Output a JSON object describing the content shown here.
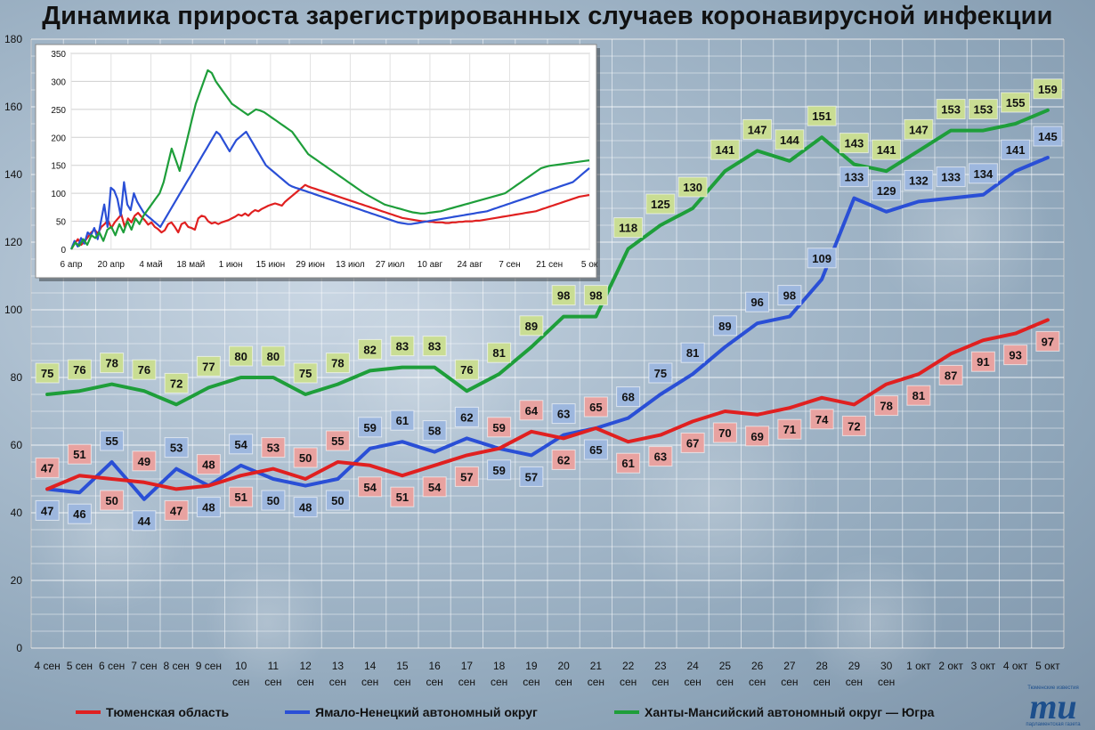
{
  "title": "Динамика прироста зарегистрированных случаев коронавирусной инфекции",
  "colors": {
    "tyumen": "#e02020",
    "yanao": "#2a4fd6",
    "khmao": "#1e9e3a",
    "tyumen_label_bg": "#e8a2a0",
    "yanao_label_bg": "#9db7de",
    "khmao_label_bg": "#c9dd93"
  },
  "logo": {
    "mark": "mu",
    "line1": "Тюменские известия",
    "line2": "парламентская газета"
  },
  "chart_data": [
    {
      "type": "line",
      "title": "Динамика прироста зарегистрированных случаев коронавирусной инфекции",
      "categories": [
        "4 сен",
        "5 сен",
        "6 сен",
        "7 сен",
        "8 сен",
        "9 сен",
        "10 сен",
        "11 сен",
        "12 сен",
        "13 сен",
        "14 сен",
        "15 сен",
        "16 сен",
        "17 сен",
        "18 сен",
        "19 сен",
        "20 сен",
        "21 сен",
        "22 сен",
        "23 сен",
        "24 сен",
        "25 сен",
        "26 сен",
        "27 сен",
        "28 сен",
        "29 сен",
        "30 сен",
        "1 окт",
        "2 окт",
        "3 окт",
        "4 окт",
        "5 окт"
      ],
      "ylim": [
        0,
        180
      ],
      "yticks": [
        0,
        20,
        40,
        60,
        80,
        100,
        120,
        140,
        160,
        180
      ],
      "grid": true,
      "legend": "bottom",
      "series": [
        {
          "name": "Тюменская область",
          "color": "#e02020",
          "values": [
            47,
            51,
            50,
            49,
            47,
            48,
            51,
            53,
            50,
            55,
            54,
            51,
            54,
            57,
            59,
            64,
            62,
            65,
            61,
            63,
            67,
            70,
            69,
            71,
            74,
            72,
            78,
            81,
            87,
            91,
            93,
            97
          ]
        },
        {
          "name": "Ямало-Ненецкий автономный округ",
          "color": "#2a4fd6",
          "values": [
            47,
            46,
            55,
            44,
            53,
            48,
            54,
            50,
            48,
            50,
            59,
            61,
            58,
            62,
            59,
            57,
            63,
            65,
            68,
            75,
            81,
            89,
            96,
            98,
            109,
            133,
            129,
            132,
            133,
            134,
            141,
            145
          ]
        },
        {
          "name": "Ханты-Мансийский автономный округ — Югра",
          "color": "#1e9e3a",
          "values": [
            75,
            76,
            78,
            76,
            72,
            77,
            80,
            80,
            75,
            78,
            82,
            83,
            83,
            76,
            81,
            89,
            98,
            98,
            118,
            125,
            130,
            141,
            147,
            144,
            151,
            143,
            141,
            147,
            153,
            153,
            155,
            159
          ]
        }
      ]
    },
    {
      "type": "line",
      "xticks": [
        "6 апр",
        "20 апр",
        "4 май",
        "18 май",
        "1 июн",
        "15 июн",
        "29 июн",
        "13 июл",
        "27 июл",
        "10 авг",
        "24 авг",
        "7 сен",
        "21 сен",
        "5 ок"
      ],
      "ylim": [
        0,
        350
      ],
      "yticks": [
        0,
        50,
        100,
        150,
        200,
        250,
        300,
        350
      ],
      "grid": true,
      "series": [
        {
          "color": "#e02020",
          "values": [
            0,
            10,
            18,
            8,
            14,
            22,
            30,
            35,
            28,
            40,
            45,
            52,
            38,
            48,
            55,
            62,
            40,
            55,
            48,
            60,
            65,
            58,
            52,
            44,
            48,
            40,
            36,
            30,
            34,
            45,
            48,
            40,
            30,
            45,
            48,
            40,
            38,
            35,
            55,
            60,
            58,
            50,
            46,
            48,
            45,
            48,
            50,
            52,
            55,
            58,
            62,
            60,
            64,
            60,
            66,
            70,
            68,
            72,
            75,
            78,
            80,
            82,
            80,
            78,
            85,
            90,
            95,
            100,
            105,
            110,
            115,
            112,
            110,
            108,
            106,
            104,
            102,
            100,
            98,
            96,
            94,
            92,
            90,
            88,
            86,
            84,
            82,
            80,
            78,
            76,
            74,
            72,
            70,
            68,
            66,
            64,
            62,
            60,
            58,
            56,
            55,
            54,
            53,
            52,
            51,
            50,
            50,
            49,
            49,
            48,
            48,
            48,
            47,
            47,
            48,
            48,
            49,
            49,
            50,
            50,
            50,
            51,
            51,
            52,
            53,
            54,
            55,
            56,
            57,
            58,
            59,
            60,
            61,
            62,
            63,
            64,
            65,
            66,
            67,
            68,
            70,
            72,
            74,
            76,
            78,
            80,
            82,
            84,
            86,
            88,
            90,
            92,
            94,
            95,
            96,
            97
          ]
        },
        {
          "color": "#2a4fd6",
          "values": [
            0,
            15,
            5,
            20,
            10,
            30,
            25,
            38,
            18,
            50,
            80,
            40,
            110,
            105,
            90,
            60,
            120,
            80,
            70,
            100,
            85,
            75,
            65,
            60,
            55,
            50,
            45,
            40,
            50,
            60,
            70,
            80,
            90,
            100,
            110,
            120,
            130,
            140,
            150,
            160,
            170,
            180,
            190,
            200,
            210,
            205,
            195,
            185,
            175,
            185,
            195,
            200,
            205,
            210,
            200,
            190,
            180,
            170,
            160,
            150,
            145,
            140,
            135,
            130,
            125,
            120,
            115,
            112,
            110,
            108,
            106,
            104,
            102,
            100,
            98,
            96,
            94,
            92,
            90,
            88,
            86,
            84,
            82,
            80,
            78,
            76,
            74,
            72,
            70,
            68,
            66,
            64,
            62,
            60,
            58,
            56,
            54,
            52,
            50,
            48,
            47,
            46,
            45,
            45,
            46,
            47,
            48,
            49,
            50,
            51,
            52,
            53,
            54,
            55,
            56,
            57,
            58,
            59,
            60,
            61,
            62,
            63,
            64,
            65,
            66,
            67,
            68,
            70,
            72,
            74,
            76,
            78,
            80,
            82,
            84,
            86,
            88,
            90,
            92,
            94,
            96,
            98,
            100,
            102,
            104,
            106,
            108,
            110,
            112,
            114,
            116,
            118,
            120,
            125,
            130,
            135,
            140,
            145
          ]
        },
        {
          "color": "#1e9e3a",
          "values": [
            0,
            12,
            6,
            18,
            8,
            25,
            20,
            30,
            15,
            35,
            40,
            25,
            45,
            30,
            50,
            35,
            55,
            45,
            60,
            70,
            80,
            90,
            100,
            120,
            150,
            180,
            160,
            140,
            170,
            200,
            230,
            260,
            280,
            300,
            320,
            315,
            300,
            290,
            280,
            270,
            260,
            255,
            250,
            245,
            240,
            245,
            250,
            248,
            245,
            240,
            235,
            230,
            225,
            220,
            215,
            210,
            200,
            190,
            180,
            170,
            165,
            160,
            155,
            150,
            145,
            140,
            135,
            130,
            125,
            120,
            115,
            110,
            105,
            100,
            96,
            92,
            88,
            84,
            80,
            78,
            76,
            74,
            72,
            70,
            68,
            66,
            65,
            64,
            64,
            65,
            66,
            67,
            68,
            70,
            72,
            74,
            76,
            78,
            80,
            82,
            84,
            86,
            88,
            90,
            92,
            94,
            96,
            98,
            100,
            105,
            110,
            115,
            120,
            125,
            130,
            135,
            140,
            145,
            147,
            149,
            150,
            151,
            152,
            153,
            154,
            155,
            156,
            157,
            158,
            159
          ]
        }
      ]
    }
  ]
}
